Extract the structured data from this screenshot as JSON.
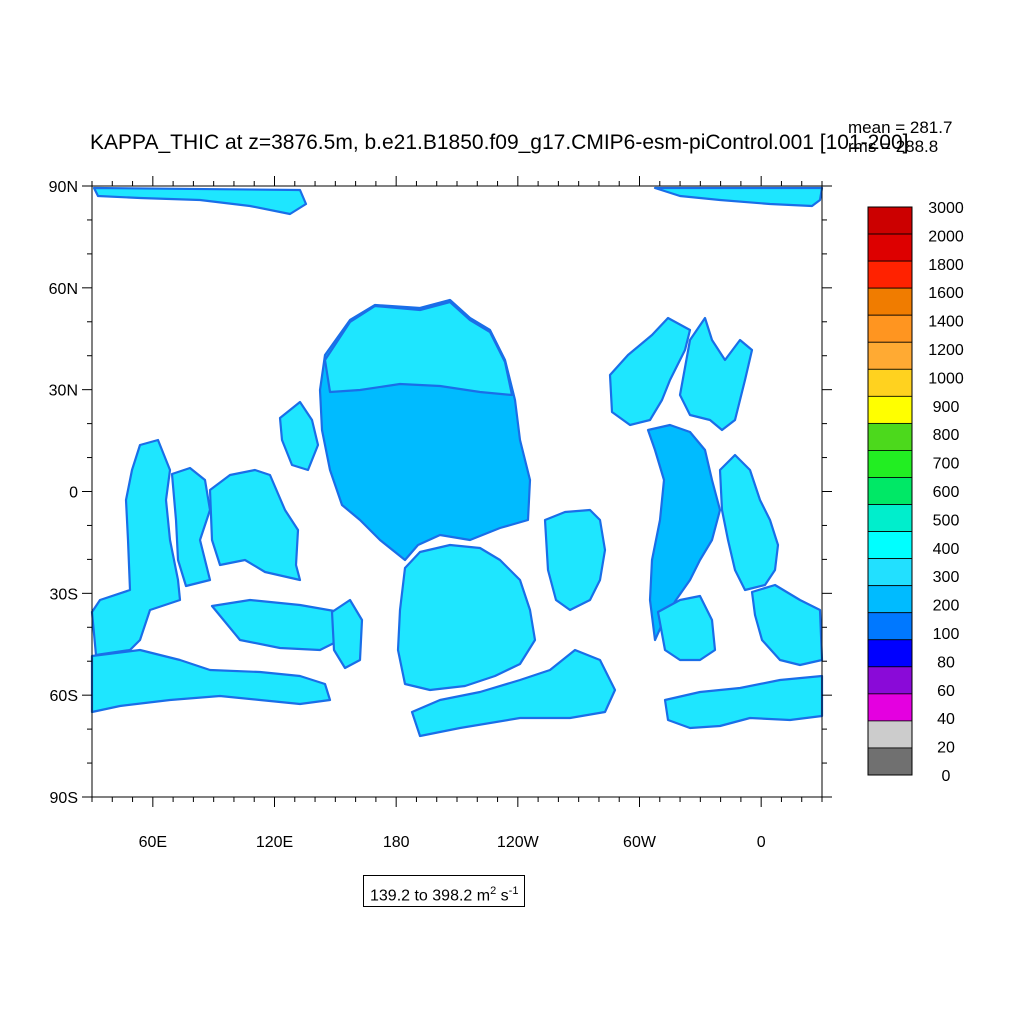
{
  "title": "KAPPA_THIC at z=3876.5m, b.e21.B1850.f09_g17.CMIP6-esm-piControl.001 [101-200]",
  "stats": {
    "mean": "mean = 281.7",
    "rms": "rms = 288.8"
  },
  "range": {
    "prefix": "139.2 to 398.2 m",
    "exp1": "2",
    "mid": " s",
    "exp2": "-1"
  },
  "lat_labels": [
    "90N",
    "60N",
    "30N",
    "0",
    "30S",
    "60S",
    "90S"
  ],
  "lon_labels": [
    "60E",
    "120E",
    "180",
    "120W",
    "60W",
    "0"
  ],
  "colorbar": {
    "labels": [
      "3000",
      "2000",
      "1800",
      "1600",
      "1400",
      "1200",
      "1000",
      "900",
      "800",
      "700",
      "600",
      "500",
      "400",
      "300",
      "200",
      "100",
      "80",
      "60",
      "40",
      "20",
      "0"
    ],
    "colors": [
      "#cc0000",
      "#dd0000",
      "#ff2200",
      "#f07c00",
      "#ff9520",
      "#ffaa33",
      "#ffd21f",
      "#ffff00",
      "#4cd91c",
      "#22ee22",
      "#00e866",
      "#00eecc",
      "#00ffff",
      "#22e0ff",
      "#00bbff",
      "#0078ff",
      "#0000ff",
      "#8a0ad8",
      "#e400e0",
      "#cccccc",
      "#707070"
    ]
  },
  "map": {
    "ocean_colors": {
      "main": "#1ee6ff",
      "deep": "#00bbff",
      "edge": "#1a6ee8"
    },
    "land_color": "#ffffff"
  }
}
